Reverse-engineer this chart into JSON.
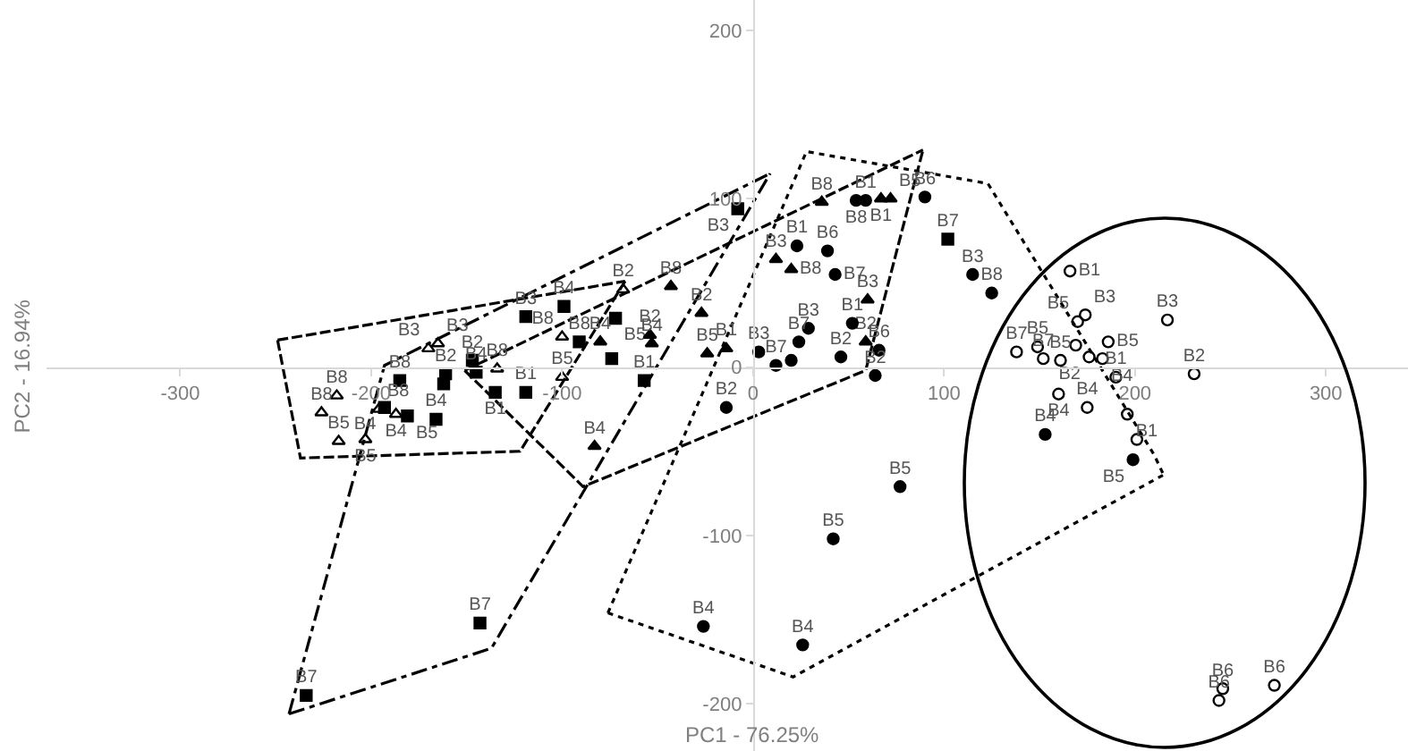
{
  "chart_data": {
    "type": "scatter",
    "xlabel": "PC1 - 76.25%",
    "ylabel": "PC2 - 16.94%",
    "xlim": [
      -370,
      343
    ],
    "ylim": [
      -228,
      218
    ],
    "xticks": [
      -300,
      -200,
      -100,
      0,
      100,
      200,
      300
    ],
    "yticks": [
      -200,
      -100,
      0,
      100,
      200
    ],
    "grid": false,
    "series": [
      {
        "type": "line",
        "line_style": "dashed",
        "color": "#000000",
        "x": [
          -249,
          -67
        ],
        "values": [
          16,
          51
        ]
      },
      {
        "type": "line",
        "line_style": "dashed",
        "color": "#000000",
        "x": [
          -249,
          -237,
          -122,
          -67
        ],
        "values": [
          16,
          -54,
          -50,
          51
        ]
      },
      {
        "type": "line",
        "line_style": "dashed",
        "color": "#000000",
        "x": [
          -151,
          89
        ],
        "values": [
          -2,
          129
        ]
      },
      {
        "type": "line",
        "line_style": "dashed",
        "color": "#000000",
        "x": [
          -151,
          -89,
          59,
          89
        ],
        "values": [
          -2,
          -71,
          -2,
          129
        ]
      },
      {
        "type": "line",
        "line_style": "dashdot",
        "color": "#000000",
        "x": [
          -243,
          -193,
          9
        ],
        "values": [
          -206,
          1,
          115
        ]
      },
      {
        "type": "line",
        "line_style": "dashdot",
        "color": "#000000",
        "x": [
          -243,
          -137,
          9
        ],
        "values": [
          -206,
          -167,
          115
        ]
      },
      {
        "type": "line",
        "line_style": "dotted",
        "color": "#000000",
        "x": [
          -76,
          28,
          123,
          210,
          215
        ],
        "values": [
          -146,
          128,
          109,
          -52,
          -64
        ]
      },
      {
        "type": "line",
        "line_style": "dotted",
        "color": "#000000",
        "x": [
          -76,
          21,
          215
        ],
        "values": [
          -146,
          -184,
          -64
        ]
      },
      {
        "marker": "square",
        "color": "#000000",
        "x": [
          -8,
          102,
          -119,
          -99,
          -72,
          -91,
          -74,
          -57,
          -147,
          -145,
          -135,
          -119,
          -161,
          -162,
          -185,
          -193,
          -181,
          -166,
          -143,
          -234
        ],
        "values": [
          94,
          76,
          30,
          36,
          29,
          15,
          5,
          -8,
          4,
          -3,
          -15,
          -15,
          -4,
          -10,
          -8,
          -24,
          -29,
          -31,
          -152,
          -195
        ],
        "value_labels": [
          "B3",
          "B7",
          "B3",
          "B4",
          "B5",
          "B8",
          null,
          "B1",
          "B2",
          "B4",
          "B1",
          "B1",
          "B2",
          null,
          "B8",
          "B4",
          "B5",
          "B4",
          "B7",
          "B7"
        ]
      },
      {
        "marker": "triangle-open",
        "color": "#000000",
        "x": [
          -170,
          -165,
          -134,
          -218,
          -226,
          -217,
          -203,
          -196,
          -187,
          -100,
          -100,
          -68
        ],
        "values": [
          11,
          14,
          -1,
          -17,
          -27,
          -44,
          -43,
          -25,
          -28,
          18,
          -6,
          46
        ],
        "value_labels": [
          "B3",
          "B3",
          "B8",
          "B8",
          "B8",
          "B5",
          "B5",
          "B8",
          "B4",
          "B8",
          "B5",
          "B2"
        ]
      },
      {
        "marker": "triangle",
        "color": "#000000",
        "x": [
          36,
          67,
          72,
          12,
          20,
          60,
          59,
          -27,
          -24,
          -14,
          -43,
          -54,
          -53,
          -80,
          -83
        ],
        "values": [
          98,
          100,
          100,
          64,
          58,
          40,
          15,
          32,
          8,
          11,
          48,
          19,
          14,
          15,
          -47
        ],
        "value_labels": [
          "B8",
          "B1",
          "B5",
          "B3",
          "B8",
          "B3",
          "B2",
          "B2",
          "B5",
          "B1",
          "B8",
          "B2",
          "B4",
          "B4",
          "B4"
        ]
      },
      {
        "marker": "circle",
        "color": "#000000",
        "x": [
          54,
          59,
          90,
          23,
          39,
          43,
          115,
          125,
          52,
          29,
          24,
          3,
          12,
          20,
          46,
          66,
          64,
          -14,
          77,
          42,
          -26,
          26,
          153,
          199
        ],
        "values": [
          99,
          99,
          101,
          72,
          69,
          55,
          55,
          44,
          26,
          23,
          15,
          9,
          1,
          4,
          6,
          10,
          -5,
          -24,
          -71,
          -102,
          -154,
          -165,
          -40,
          -55
        ],
        "value_labels": [
          "B8",
          "B1",
          "B6",
          "B1",
          "B6",
          "B7",
          "B3",
          "B8",
          "B1",
          "B3",
          "B7",
          "B3",
          "B7",
          null,
          "B2",
          "B6",
          "B2",
          "B2",
          "B5",
          "B5",
          "B4",
          "B4",
          "B4",
          "B5"
        ]
      },
      {
        "marker": "circle-open",
        "color": "#000000",
        "x": [
          166,
          217,
          231,
          174,
          170,
          186,
          169,
          149,
          138,
          152,
          161,
          176,
          183,
          190,
          160,
          175,
          196,
          201,
          246,
          244,
          273
        ],
        "values": [
          57,
          28,
          -4,
          31,
          27,
          15,
          13,
          12,
          9,
          5,
          4,
          6,
          5,
          -6,
          -16,
          -24,
          -28,
          -43,
          -191,
          -198,
          -189
        ],
        "value_labels": [
          "B1",
          "B3",
          "B2",
          "B3",
          "B5",
          "B5",
          null,
          "B5",
          "B7",
          "B7",
          "B5",
          "B2",
          "B4",
          "B1",
          "B4",
          "B4",
          "B1",
          null,
          "B6",
          "B6",
          "B6"
        ]
      }
    ]
  }
}
